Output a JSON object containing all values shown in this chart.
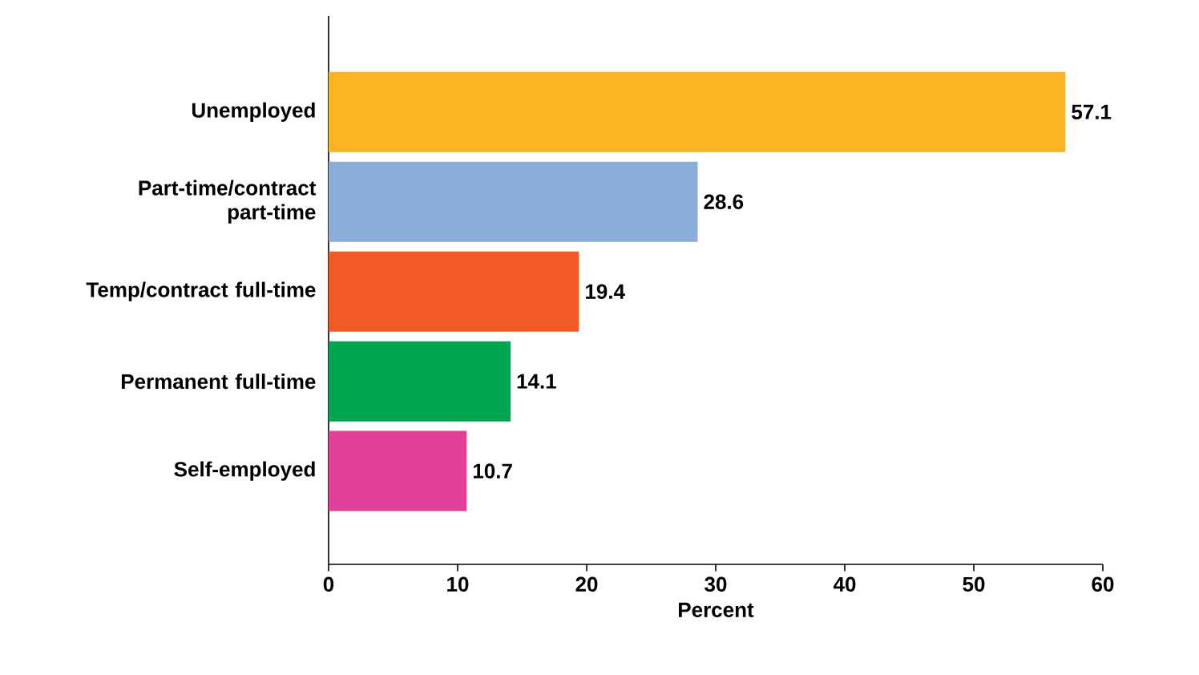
{
  "chart_data": {
    "type": "bar",
    "orientation": "horizontal",
    "categories": [
      "Unemployed",
      "Part-time/contract part-time",
      "Temp/contract full-time",
      "Permanent full-time",
      "Self-employed"
    ],
    "values": [
      57.1,
      28.6,
      19.4,
      14.1,
      10.7
    ],
    "colors": [
      "#fbb424",
      "#8aaed9",
      "#f15a24",
      "#00a551",
      "#e2409a"
    ],
    "xlim": [
      0,
      60
    ],
    "xticks": [
      0,
      10,
      20,
      30,
      40,
      50,
      60
    ],
    "xlabel": "Percent",
    "data_labels": true,
    "grid": false
  }
}
